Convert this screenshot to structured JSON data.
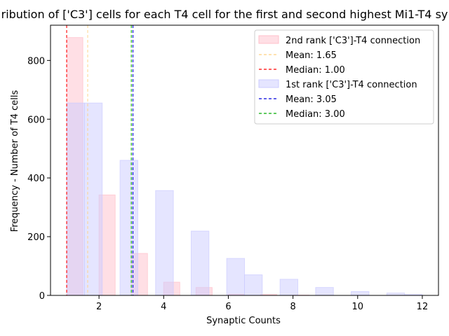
{
  "chart_data": {
    "type": "bar",
    "title": "ribution of ['C3'] cells for each T4 cell for the first and second highest Mi1-T4 sy",
    "xlabel": "Synaptic Counts",
    "ylabel": "Frequency - Number of T4 cells",
    "xlim": [
      0.5,
      12.5
    ],
    "ylim": [
      0,
      920
    ],
    "xticks": [
      2,
      4,
      6,
      8,
      10,
      12
    ],
    "yticks": [
      0,
      200,
      400,
      600,
      800
    ],
    "grid": false,
    "legend_position": "top-right",
    "series": [
      {
        "name": "2nd rank ['C3']-T4 connection",
        "color": "#ffc0cb",
        "edge_color": "#ffc0cb",
        "bin_width": 0.5,
        "bins": [
          {
            "x": 1.0,
            "y": 878
          },
          {
            "x": 2.0,
            "y": 342
          },
          {
            "x": 3.0,
            "y": 143
          },
          {
            "x": 4.0,
            "y": 45
          },
          {
            "x": 5.0,
            "y": 27
          },
          {
            "x": 6.0,
            "y": 4
          },
          {
            "x": 7.0,
            "y": 3
          },
          {
            "x": 8.0,
            "y": 1
          },
          {
            "x": 9.0,
            "y": 0
          },
          {
            "x": 10.0,
            "y": 0
          },
          {
            "x": 11.0,
            "y": 0
          }
        ]
      },
      {
        "name": "1st rank ['C3']-T4 connection",
        "color": "#ccccff",
        "edge_color": "#ccccff",
        "bin_width": 0.55,
        "bins": [
          {
            "x": 1.0,
            "y": 655
          },
          {
            "x": 1.55,
            "y": 655
          },
          {
            "x": 2.65,
            "y": 460
          },
          {
            "x": 3.75,
            "y": 357
          },
          {
            "x": 4.85,
            "y": 219
          },
          {
            "x": 5.95,
            "y": 126
          },
          {
            "x": 6.5,
            "y": 70
          },
          {
            "x": 7.6,
            "y": 55
          },
          {
            "x": 8.7,
            "y": 27
          },
          {
            "x": 9.8,
            "y": 13
          },
          {
            "x": 10.9,
            "y": 8
          },
          {
            "x": 11.45,
            "y": 3
          }
        ]
      }
    ],
    "reference_lines": [
      {
        "label": "Mean: 1.65",
        "value": 1.65,
        "color": "#ffd080",
        "dash": "4,3",
        "width": 0.9
      },
      {
        "label": "Median: 1.00",
        "value": 1.0,
        "color": "#ff0000",
        "dash": "4,3",
        "width": 1.1
      },
      {
        "label": "Mean: 3.05",
        "value": 3.05,
        "color": "#0000dd",
        "dash": "4,3",
        "width": 1.1
      },
      {
        "label": "Median: 3.00",
        "value": 3.0,
        "color": "#00aa00",
        "dash": "4,3",
        "width": 1.1
      }
    ],
    "legend_entries": [
      {
        "label": "2nd rank ['C3']-T4 connection",
        "kind": "patch",
        "color": "#ffc0cb"
      },
      {
        "label": "Mean: 1.65",
        "kind": "line",
        "color": "#ffd080"
      },
      {
        "label": "Median: 1.00",
        "kind": "line",
        "color": "#ff0000"
      },
      {
        "label": "1st rank ['C3']-T4 connection",
        "kind": "patch",
        "color": "#ccccff"
      },
      {
        "label": "Mean: 3.05",
        "kind": "line",
        "color": "#0000dd"
      },
      {
        "label": "Median: 3.00",
        "kind": "line",
        "color": "#00aa00"
      }
    ]
  }
}
